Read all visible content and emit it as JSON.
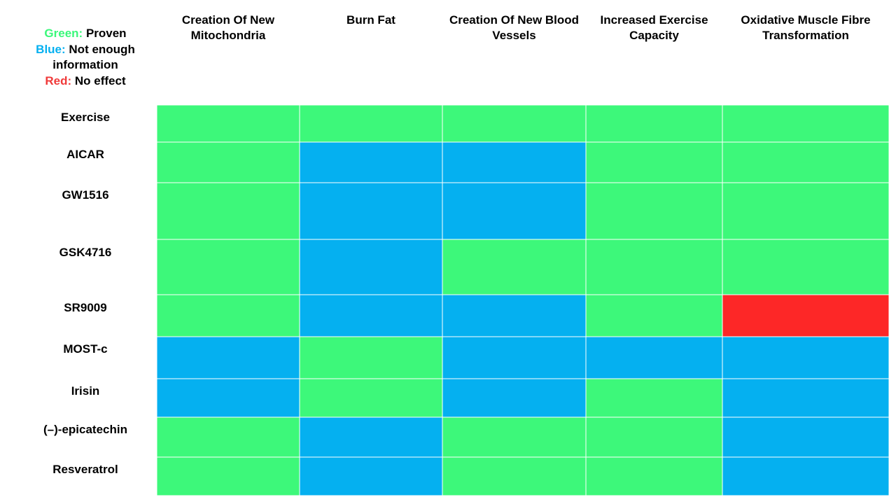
{
  "legend": {
    "green_key": "Green:",
    "green_text": "Proven",
    "blue_key": "Blue:",
    "blue_text_1": "Not enough",
    "blue_text_2": "information",
    "red_key": "Red:",
    "red_text": "No effect"
  },
  "colors": {
    "green": "#3df87a",
    "blue": "#05b0f0",
    "red": "#fd2727",
    "gridline": "#ffffff"
  },
  "chart_data": {
    "type": "heatmap",
    "title": "",
    "columns": [
      "Creation Of New Mitochondria",
      "Burn Fat",
      "Creation Of New Blood Vessels",
      "Increased Exercise Capacity",
      "Oxidative Muscle Fibre Transformation"
    ],
    "column_header_lines": [
      [
        "Creation Of New",
        "Mitochondria"
      ],
      [
        "Burn Fat"
      ],
      [
        "Creation Of New Blood",
        "Vessels"
      ],
      [
        "Increased Exercise",
        "Capacity"
      ],
      [
        "Oxidative Muscle Fibre",
        "Transformation"
      ]
    ],
    "rows": [
      "Exercise",
      "AICAR",
      "GW1516",
      "GSK4716",
      "SR9009",
      "MOST-c",
      "Irisin",
      "(–)-epicatechin",
      "Resveratrol"
    ],
    "value_legend": {
      "green": "Proven",
      "blue": "Not enough information",
      "red": "No effect"
    },
    "values": [
      [
        "green",
        "green",
        "green",
        "green",
        "green"
      ],
      [
        "green",
        "blue",
        "blue",
        "green",
        "green"
      ],
      [
        "green",
        "blue",
        "blue",
        "green",
        "green"
      ],
      [
        "green",
        "blue",
        "green",
        "green",
        "green"
      ],
      [
        "green",
        "blue",
        "blue",
        "green",
        "red"
      ],
      [
        "blue",
        "green",
        "blue",
        "blue",
        "blue"
      ],
      [
        "blue",
        "green",
        "blue",
        "green",
        "blue"
      ],
      [
        "green",
        "blue",
        "green",
        "green",
        "blue"
      ],
      [
        "green",
        "blue",
        "green",
        "green",
        "blue"
      ]
    ]
  }
}
